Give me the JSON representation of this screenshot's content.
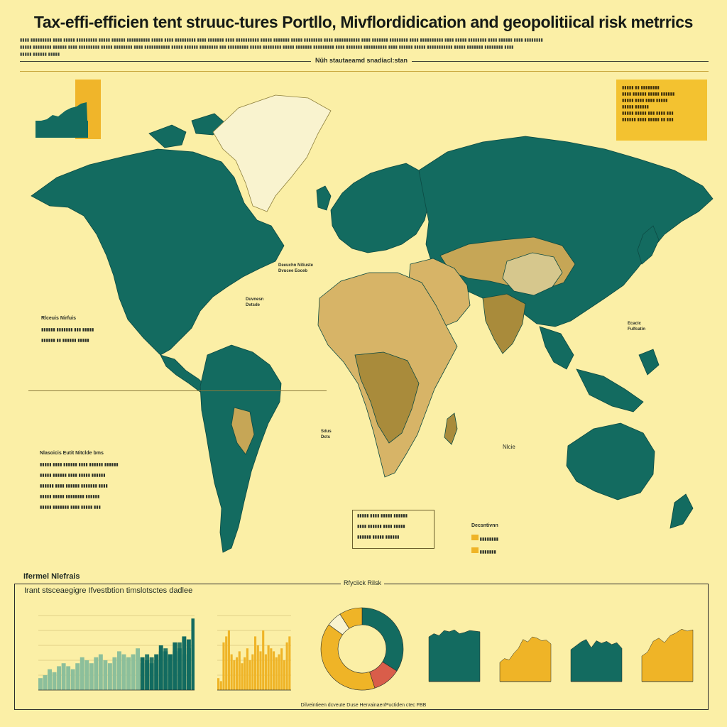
{
  "header": {
    "title": "Tax-effi-efficien tent struuc-tures Portllo, Mivflordidication and geopolitiical risk metrrics",
    "map_caption": "Nüh stautaeamd snadiacl:stan"
  },
  "labels": {
    "left_notes_head": "Rlceuis Nirfuis",
    "left_list_head": "Nlasoicis Eutit Nitclde bms",
    "eur_region": "Deeuchn Nitiuste\nDvucee Eoceb",
    "atlantic": "Duvnesn\nDvtsde",
    "africa": "Sdus\nDcts",
    "ocean": "Nlcie",
    "asia_note": "Ecacic\nFulfcatin",
    "legend_label": "Decsntivnn",
    "bottom_head": "Ifermel Nlefrais",
    "bottom_title": "Irant stsceaegigre Ifvestbtion timslotsctes dadlee",
    "bottom_mid": "Rfyciick Rilsk",
    "footer": "Dilveintieen dcveute Duse Hervainaer/Puctiden ctec FBB"
  },
  "colors": {
    "background": "#fbefa6",
    "teal": "#136b60",
    "gold": "#efb427",
    "sand": "#d7b467",
    "ochre": "#a98b3b",
    "red": "#d95d4a",
    "light_teal": "#8cbf9b",
    "ice": "#f9f3cf"
  },
  "chart_data": [
    {
      "type": "bar",
      "title": "",
      "series": [
        {
          "name": "",
          "values": [
            4,
            5,
            7,
            6,
            8,
            9,
            8,
            7,
            9,
            11,
            10,
            9,
            11,
            12,
            10,
            9,
            11,
            13,
            12,
            11,
            12,
            14,
            11,
            10,
            9,
            12,
            15,
            13,
            12,
            16,
            14,
            18,
            17,
            24
          ]
        },
        {
          "name": "",
          "values": [
            0,
            0,
            0,
            0,
            0,
            0,
            0,
            0,
            0,
            0,
            0,
            0,
            0,
            0,
            0,
            0,
            0,
            0,
            0,
            0,
            0,
            0,
            9,
            12,
            11,
            10,
            13,
            14,
            12,
            13,
            16,
            12,
            14,
            15
          ]
        }
      ],
      "ylim": [
        0,
        25
      ]
    },
    {
      "type": "bar",
      "values": [
        4,
        3,
        16,
        18,
        20,
        12,
        10,
        11,
        13,
        9,
        11,
        14,
        10,
        12,
        18,
        15,
        13,
        20,
        12,
        15,
        14,
        13,
        11,
        12,
        14,
        10,
        16,
        18
      ],
      "ylim": [
        0,
        25
      ]
    },
    {
      "type": "pie",
      "slices": [
        {
          "label": "",
          "value": 34
        },
        {
          "label": "",
          "value": 11
        },
        {
          "label": "",
          "value": 40
        },
        {
          "label": "",
          "value": 6
        },
        {
          "label": "",
          "value": 9
        }
      ]
    },
    {
      "type": "area",
      "panels": [
        {
          "values": [
            7,
            7.5,
            7.2,
            8,
            7.8,
            8.1,
            7.5,
            7.7,
            8,
            7.9,
            7.8
          ]
        },
        {
          "values": [
            3,
            3.6,
            3.4,
            4.4,
            5.2,
            6.6,
            6.2,
            7,
            6.8,
            6.4,
            6.5,
            5.9
          ]
        },
        {
          "values": [
            5,
            5.6,
            6.2,
            6.6,
            5.3,
            6.4,
            6,
            6.3,
            5.8,
            6.1,
            5.2
          ]
        },
        {
          "values": [
            4,
            4.6,
            6.3,
            6.8,
            6.1,
            7.2,
            7.6,
            8.2,
            7.9,
            8.1
          ]
        }
      ],
      "ylim": [
        0,
        10
      ]
    }
  ]
}
